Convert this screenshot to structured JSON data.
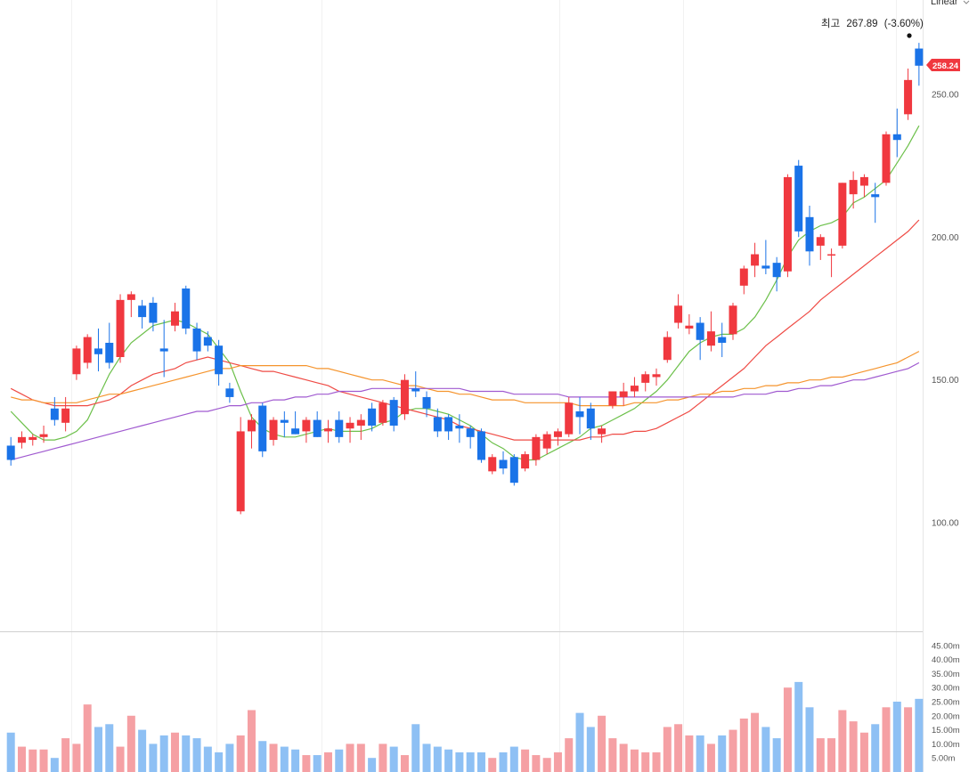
{
  "scale_selector": {
    "label": "Linear",
    "icon": "chevron-down-icon"
  },
  "high_annotation": {
    "label": "최고",
    "value": "267.89",
    "change": "(-3.60%)"
  },
  "last_price_badge": "258.24",
  "colors": {
    "up": "#f0383f",
    "down": "#1a73e8",
    "up_volume": "#f5a0a4",
    "down_volume": "#8ec0f4",
    "ma5": "#6cc04a",
    "ma20": "#ef4b45",
    "ma60": "#f5942d",
    "ma120": "#a05ad0"
  },
  "chart_data": [
    {
      "type": "candlestick",
      "title": "",
      "y_ticks": [
        "100.00",
        "150.00",
        "200.00",
        "250.00"
      ],
      "ylim": [
        62,
        283
      ],
      "grid": true,
      "candles": [
        [
          127,
          130,
          120,
          122
        ],
        [
          128,
          132,
          126,
          130
        ],
        [
          129,
          131,
          127,
          130
        ],
        [
          130,
          134,
          128,
          131
        ],
        [
          140,
          144,
          134,
          136
        ],
        [
          135,
          144,
          132,
          140
        ],
        [
          152,
          162,
          150,
          161
        ],
        [
          156,
          166,
          154,
          165
        ],
        [
          161,
          168,
          153,
          159
        ],
        [
          163,
          170,
          154,
          156
        ],
        [
          158,
          180,
          156,
          178
        ],
        [
          178,
          181,
          172,
          180
        ],
        [
          176,
          178,
          168,
          172
        ],
        [
          177,
          179,
          167,
          170
        ],
        [
          161,
          171,
          151,
          160
        ],
        [
          169,
          177,
          167,
          174
        ],
        [
          182,
          183,
          166,
          168
        ],
        [
          168,
          170,
          157,
          160
        ],
        [
          165,
          167,
          160,
          162
        ],
        [
          162,
          164,
          148,
          152
        ],
        [
          147,
          149,
          142,
          144
        ],
        [
          104,
          137,
          103,
          132
        ],
        [
          132,
          138,
          126,
          136
        ],
        [
          141,
          142,
          123,
          125
        ],
        [
          129,
          137,
          127,
          136
        ],
        [
          136,
          139,
          130,
          135
        ],
        [
          133,
          139,
          131,
          131
        ],
        [
          132,
          137,
          128,
          136
        ],
        [
          136,
          139,
          130,
          130
        ],
        [
          132,
          136,
          128,
          133
        ],
        [
          136,
          139,
          128,
          130
        ],
        [
          133,
          137,
          128,
          135
        ],
        [
          134,
          138,
          129,
          136
        ],
        [
          140,
          142,
          132,
          134
        ],
        [
          135,
          143,
          134,
          142
        ],
        [
          143,
          144,
          132,
          134
        ],
        [
          138,
          152,
          136,
          150
        ],
        [
          147,
          153,
          144,
          146
        ],
        [
          144,
          146,
          137,
          140
        ],
        [
          137,
          140,
          130,
          132
        ],
        [
          137,
          138,
          129,
          132
        ],
        [
          134,
          138,
          128,
          133
        ],
        [
          133,
          134,
          126,
          130
        ],
        [
          132,
          133,
          121,
          122
        ],
        [
          118,
          124,
          117,
          123
        ],
        [
          122,
          125,
          117,
          119
        ],
        [
          123,
          124,
          113,
          114
        ],
        [
          119,
          125,
          118,
          124
        ],
        [
          122,
          131,
          120,
          130
        ],
        [
          126,
          132,
          124,
          131
        ],
        [
          130,
          133,
          127,
          132
        ],
        [
          131,
          144,
          130,
          142
        ],
        [
          139,
          144,
          131,
          137
        ],
        [
          140,
          142,
          129,
          133
        ],
        [
          131,
          134,
          128,
          133
        ],
        [
          141,
          146,
          140,
          146
        ],
        [
          144,
          149,
          141,
          146
        ],
        [
          146,
          151,
          144,
          148
        ],
        [
          149,
          153,
          146,
          152
        ],
        [
          151,
          154,
          148,
          152
        ],
        [
          157,
          167,
          156,
          165
        ],
        [
          170,
          180,
          168,
          176
        ],
        [
          168,
          173,
          166,
          169
        ],
        [
          170,
          172,
          157,
          164
        ],
        [
          162,
          174,
          160,
          167
        ],
        [
          165,
          170,
          158,
          163
        ],
        [
          166,
          177,
          164,
          176
        ],
        [
          183,
          190,
          180,
          189
        ],
        [
          190,
          198,
          186,
          194
        ],
        [
          190,
          199,
          187,
          189
        ],
        [
          191,
          193,
          181,
          186
        ],
        [
          188,
          222,
          186,
          221
        ],
        [
          225,
          227,
          200,
          202
        ],
        [
          207,
          211,
          190,
          195
        ],
        [
          197,
          201,
          192,
          200
        ],
        [
          194,
          196,
          186,
          194
        ],
        [
          197,
          219,
          196,
          219
        ],
        [
          215,
          223,
          210,
          220
        ],
        [
          218,
          222,
          214,
          221
        ],
        [
          215,
          219,
          205,
          214
        ],
        [
          219,
          237,
          218,
          236
        ],
        [
          236,
          245,
          228,
          234
        ],
        [
          243,
          259,
          241,
          255
        ],
        [
          266,
          268,
          253,
          260
        ]
      ],
      "moving_averages": {
        "ma5": [
          139,
          135,
          131,
          129,
          129,
          130,
          132,
          136,
          144,
          152,
          158,
          163,
          166,
          169,
          170,
          171,
          170,
          168,
          166,
          161,
          156,
          146,
          137,
          133,
          131,
          130,
          130,
          131,
          132,
          133,
          132,
          132,
          132,
          133,
          135,
          136,
          139,
          140,
          140,
          139,
          138,
          136,
          134,
          131,
          128,
          126,
          123,
          122,
          122,
          124,
          126,
          128,
          130,
          133,
          134,
          136,
          138,
          140,
          143,
          146,
          150,
          155,
          160,
          163,
          165,
          166,
          166,
          168,
          172,
          178,
          185,
          193,
          199,
          202,
          204,
          205,
          207,
          212,
          214,
          217,
          220,
          226,
          232,
          239
        ],
        "ma20": [
          147,
          145,
          143,
          142,
          141,
          141,
          141,
          141,
          142,
          143,
          145,
          148,
          150,
          152,
          153,
          154,
          156,
          157,
          158,
          157,
          156,
          155,
          154,
          153,
          153,
          152,
          151,
          150,
          149,
          148,
          146,
          145,
          144,
          143,
          142,
          141,
          140,
          139,
          138,
          137,
          136,
          134,
          133,
          132,
          131,
          130,
          129,
          129,
          129,
          129,
          129,
          129,
          129,
          130,
          130,
          131,
          131,
          132,
          132,
          133,
          135,
          137,
          139,
          142,
          145,
          148,
          151,
          154,
          158,
          162,
          165,
          168,
          171,
          174,
          178,
          181,
          184,
          187,
          190,
          193,
          196,
          199,
          202,
          206
        ],
        "ma60": [
          144,
          143,
          143,
          142,
          142,
          142,
          142,
          143,
          144,
          145,
          145,
          146,
          147,
          148,
          149,
          150,
          151,
          152,
          153,
          154,
          154,
          155,
          155,
          155,
          155,
          155,
          155,
          155,
          154,
          154,
          153,
          152,
          151,
          150,
          150,
          149,
          148,
          148,
          147,
          146,
          146,
          145,
          145,
          144,
          143,
          143,
          143,
          142,
          142,
          142,
          142,
          142,
          141,
          141,
          141,
          141,
          141,
          142,
          142,
          142,
          143,
          143,
          144,
          145,
          145,
          146,
          146,
          147,
          147,
          148,
          148,
          149,
          149,
          150,
          150,
          151,
          151,
          152,
          153,
          154,
          155,
          156,
          158,
          160
        ],
        "ma120": [
          122,
          123,
          124,
          125,
          126,
          127,
          128,
          129,
          130,
          131,
          132,
          133,
          134,
          135,
          136,
          137,
          138,
          139,
          139,
          140,
          141,
          141,
          142,
          142,
          143,
          143,
          144,
          144,
          145,
          145,
          146,
          146,
          146,
          147,
          147,
          147,
          147,
          147,
          147,
          147,
          147,
          147,
          146,
          146,
          146,
          146,
          145,
          145,
          145,
          145,
          145,
          144,
          144,
          144,
          144,
          144,
          144,
          144,
          144,
          144,
          144,
          144,
          144,
          144,
          144,
          144,
          144,
          145,
          145,
          145,
          146,
          146,
          147,
          147,
          148,
          148,
          149,
          150,
          150,
          151,
          152,
          153,
          154,
          156
        ]
      }
    },
    {
      "type": "bar",
      "title": "",
      "y_ticks": [
        "5.00m",
        "10.00m",
        "15.00m",
        "20.00m",
        "25.00m",
        "30.00m",
        "35.00m",
        "40.00m",
        "45.00m"
      ],
      "ylim": [
        0,
        50
      ],
      "values": [
        14,
        9,
        8,
        8,
        5,
        12,
        10,
        24,
        16,
        17,
        9,
        20,
        15,
        10,
        13,
        14,
        13,
        12,
        9,
        7,
        10,
        13,
        22,
        11,
        10,
        9,
        8,
        6,
        6,
        7,
        8,
        10,
        10,
        5,
        10,
        9,
        6,
        17,
        10,
        9,
        8,
        7,
        7,
        7,
        5,
        7,
        9,
        8,
        6,
        5,
        7,
        12,
        21,
        16,
        20,
        12,
        10,
        8,
        7,
        7,
        16,
        17,
        13,
        13,
        10,
        13,
        15,
        19,
        21,
        16,
        12,
        30,
        32,
        23,
        12,
        12,
        22,
        18,
        14,
        17,
        23,
        25,
        23,
        26
      ]
    }
  ]
}
